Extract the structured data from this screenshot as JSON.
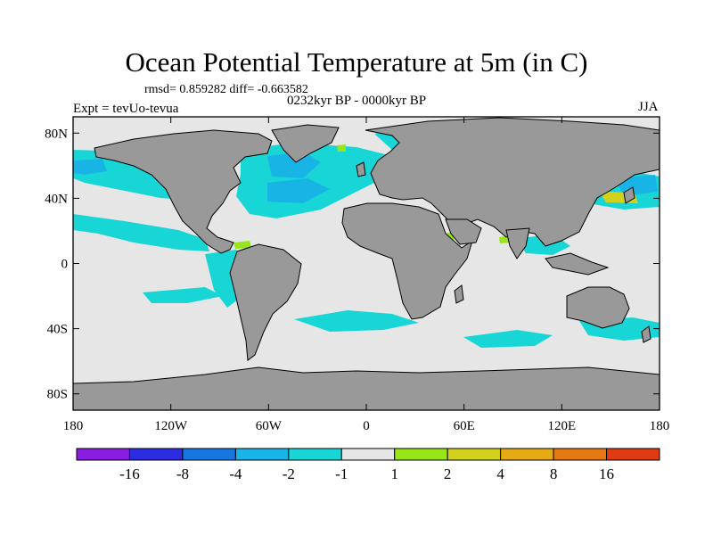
{
  "title": "Ocean Potential Temperature at 5m (in C)",
  "stats_line": "rmsd= 0.859282 diff= -0.663582",
  "period": "0232kyr BP - 0000kyr BP",
  "experiment": "Expt = tevUo-tevua",
  "season": "JJA",
  "lat_ticks": [
    {
      "value": 80,
      "label": "80N"
    },
    {
      "value": 40,
      "label": "40N"
    },
    {
      "value": 0,
      "label": "0"
    },
    {
      "value": -40,
      "label": "40S"
    },
    {
      "value": -80,
      "label": "80S"
    }
  ],
  "lon_ticks": [
    {
      "value": -180,
      "label": "180"
    },
    {
      "value": -120,
      "label": "120W"
    },
    {
      "value": -60,
      "label": "60W"
    },
    {
      "value": 0,
      "label": "0"
    },
    {
      "value": 60,
      "label": "60E"
    },
    {
      "value": 120,
      "label": "120E"
    },
    {
      "value": 180,
      "label": "180"
    }
  ],
  "colorbar": {
    "colors": [
      "#8a1ee0",
      "#2c2ce0",
      "#1677e0",
      "#19b4e6",
      "#19d6d6",
      "#e6e6e6",
      "#96e619",
      "#d2d21e",
      "#e6aa14",
      "#e67814",
      "#e03c14"
    ],
    "labels": [
      "-16",
      "-8",
      "-4",
      "-2",
      "-1",
      "1",
      "2",
      "4",
      "8",
      "16"
    ]
  },
  "colors": {
    "ocean_background": "#e6e6e6",
    "land": "#999999",
    "cool_anomaly": "#19d6d6",
    "stronger_cool_anomaly": "#19b4e6",
    "warm_anomaly": "#96e619",
    "stronger_warm_anomaly": "#d2d21e"
  }
}
